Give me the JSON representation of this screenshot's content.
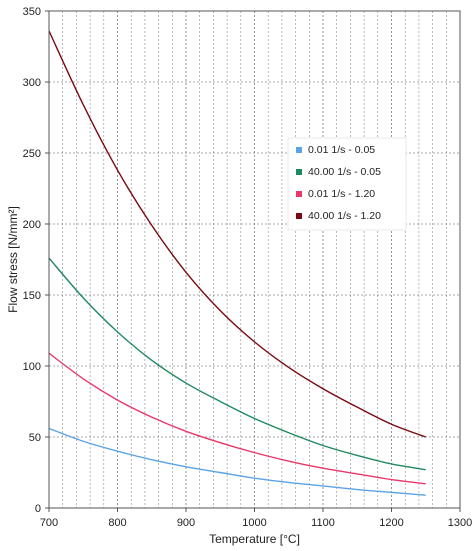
{
  "chart_data": {
    "type": "line",
    "title": "",
    "xlabel": "Temperature [°C]",
    "ylabel": "Flow stress [N/mm²]",
    "xlim": [
      700,
      1300
    ],
    "ylim": [
      0,
      350
    ],
    "x_ticks": [
      "700",
      "800",
      "900",
      "1000",
      "1100",
      "1200",
      "1300"
    ],
    "y_ticks": [
      "0",
      "50",
      "100",
      "150",
      "200",
      "250",
      "300",
      "350"
    ],
    "grid": true,
    "legend_position": "right",
    "series": [
      {
        "name": "0.01 1/s - 0.05",
        "color": "#5ba3e6",
        "x": [
          700,
          750,
          800,
          850,
          900,
          950,
          1000,
          1050,
          1100,
          1150,
          1200,
          1250
        ],
        "y": [
          56,
          47,
          40,
          34,
          29,
          25,
          21,
          18,
          15.5,
          13,
          11,
          9
        ]
      },
      {
        "name": "40.00 1/s - 0.05",
        "color": "#1e8a5e",
        "x": [
          700,
          750,
          800,
          850,
          900,
          950,
          1000,
          1050,
          1100,
          1150,
          1200,
          1250
        ],
        "y": [
          176,
          148,
          124,
          104,
          88,
          75,
          63,
          53,
          44,
          37,
          31,
          27
        ]
      },
      {
        "name": "0.01 1/s - 1.20",
        "color": "#e8386a",
        "x": [
          700,
          750,
          800,
          850,
          900,
          950,
          1000,
          1050,
          1100,
          1150,
          1200,
          1250
        ],
        "y": [
          109,
          91,
          76,
          64,
          54,
          46,
          39,
          33,
          28,
          24,
          20,
          17
        ]
      },
      {
        "name": "40.00 1/s - 1.20",
        "color": "#7a0a10",
        "x": [
          700,
          750,
          800,
          850,
          900,
          950,
          1000,
          1050,
          1100,
          1150,
          1200,
          1250
        ],
        "y": [
          336,
          284,
          238,
          199,
          166,
          139,
          117,
          99,
          84,
          71,
          59,
          50
        ]
      }
    ]
  }
}
